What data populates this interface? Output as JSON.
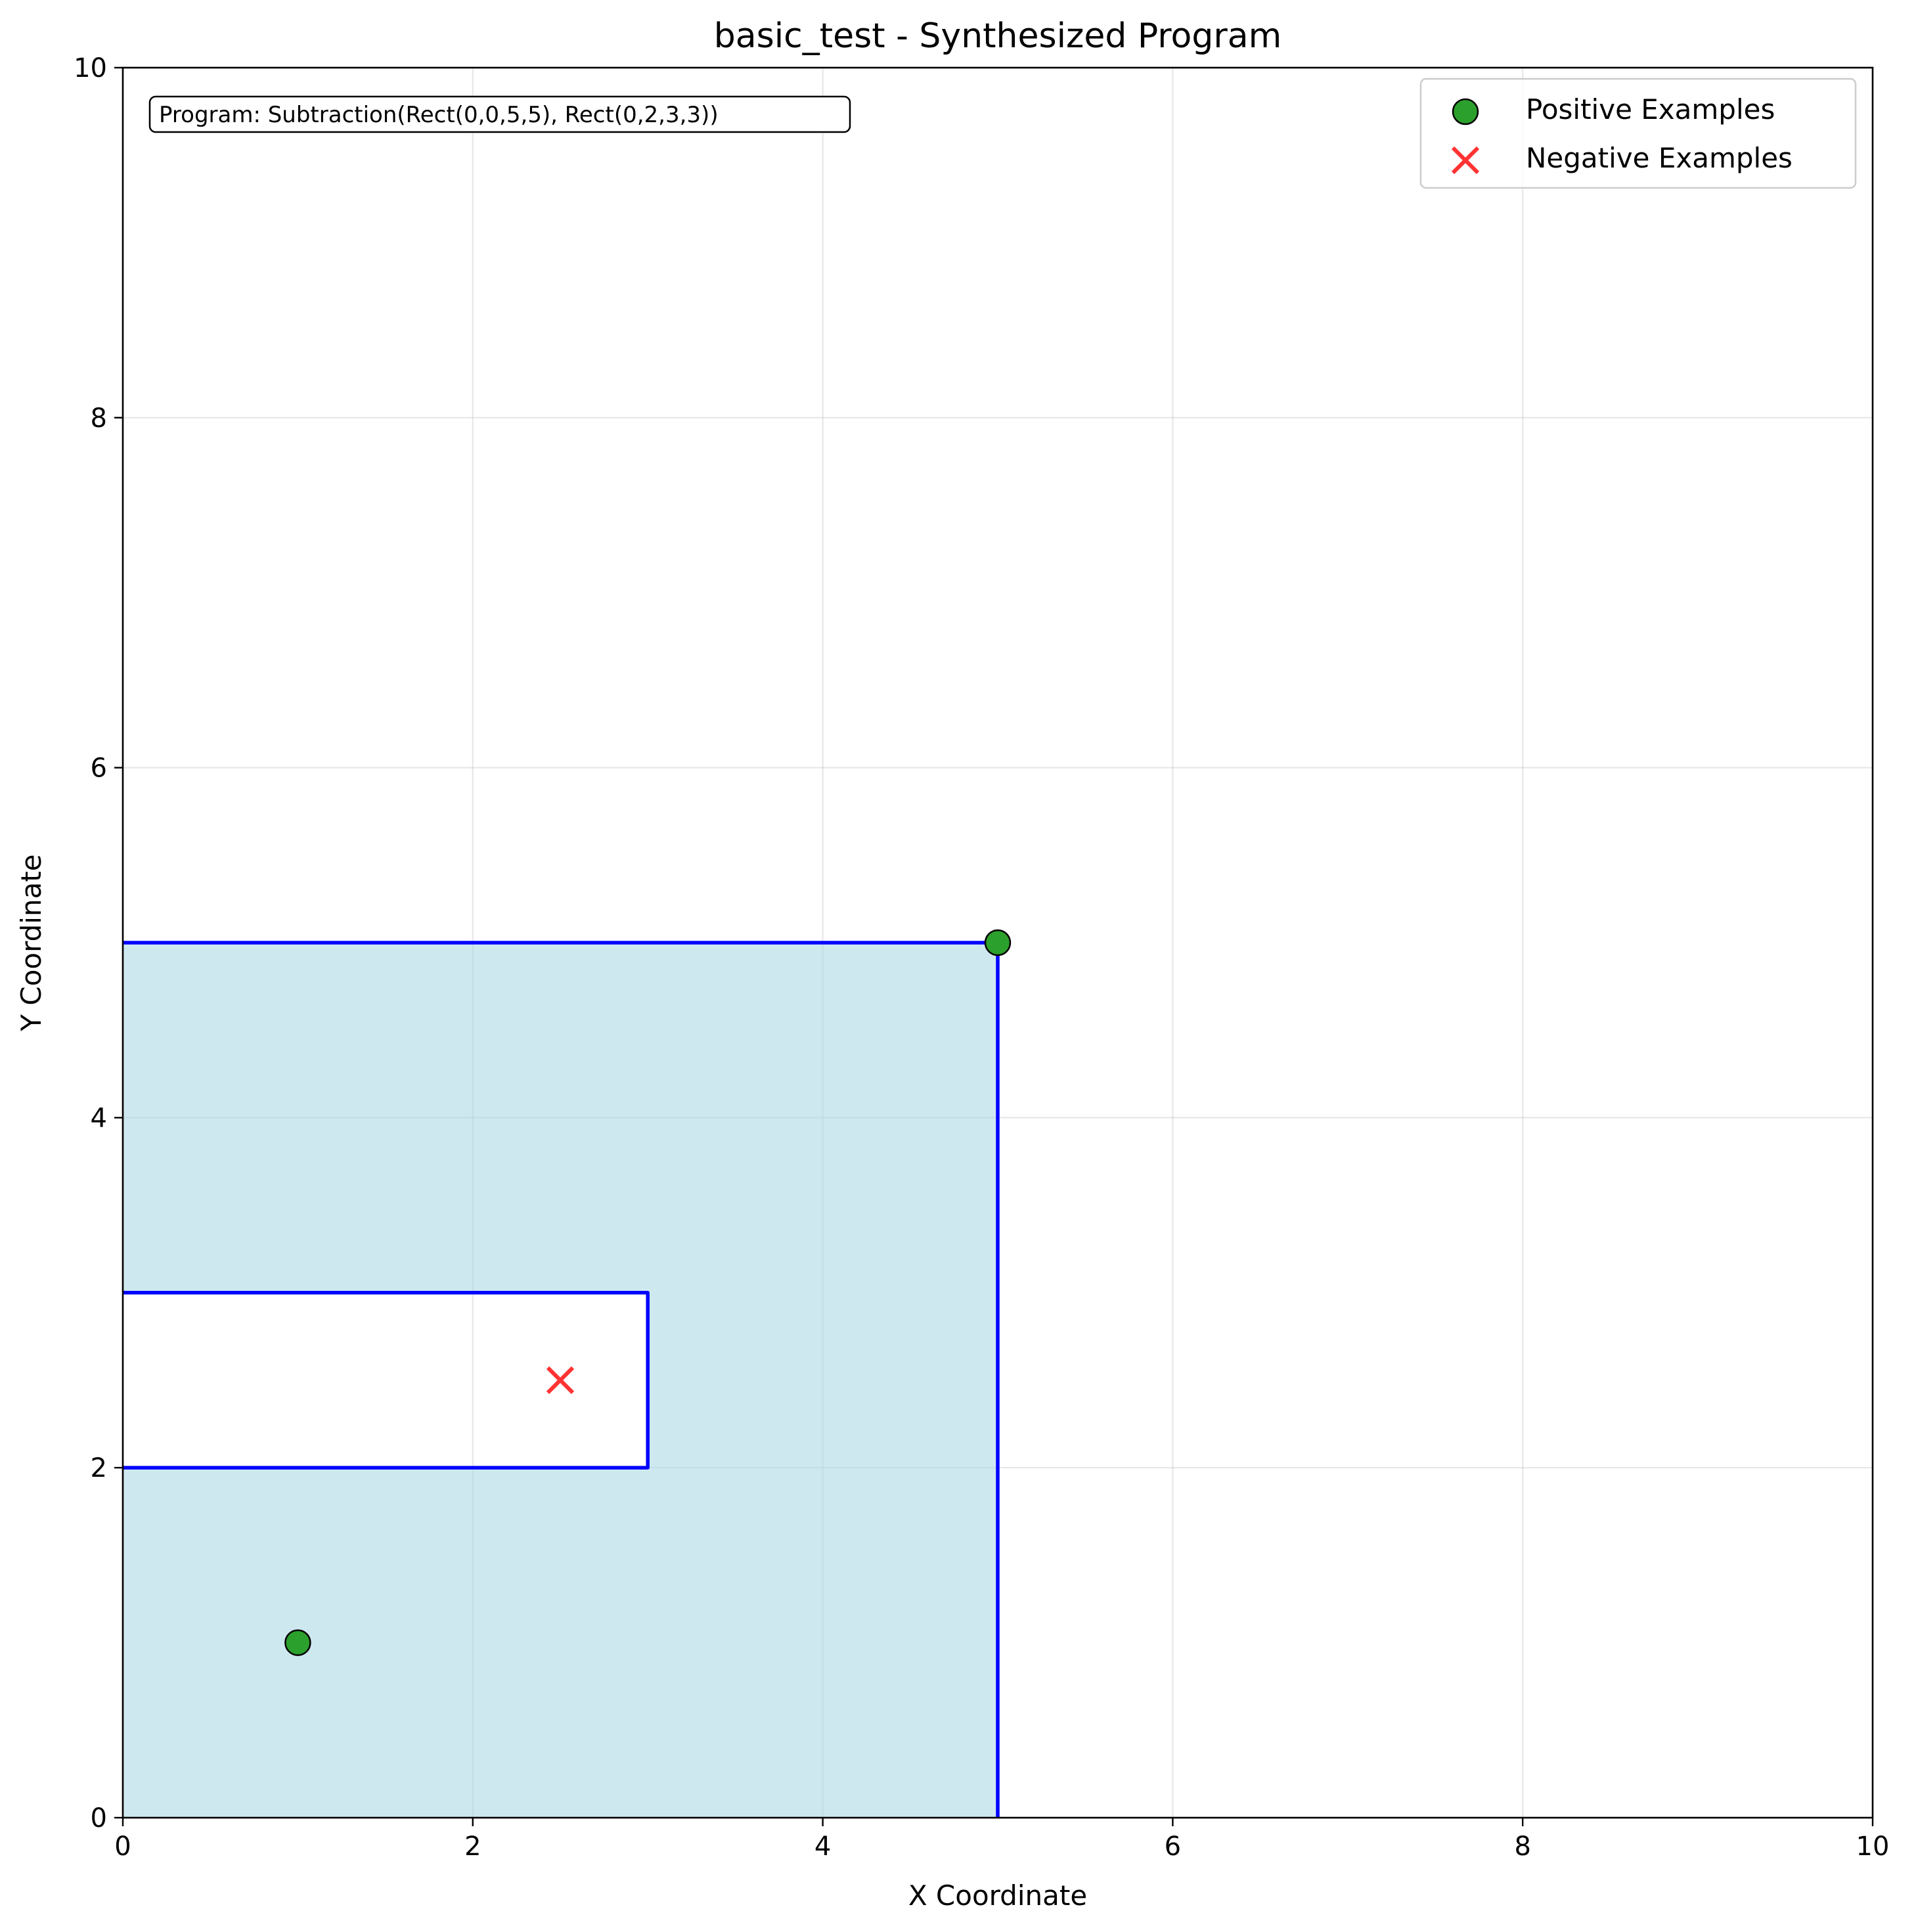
{
  "chart_data": {
    "type": "scatter",
    "title": "basic_test - Synthesized Program",
    "xlabel": "X Coordinate",
    "ylabel": "Y Coordinate",
    "xlim": [
      0,
      10
    ],
    "ylim": [
      0,
      10
    ],
    "xticks": [
      0,
      2,
      4,
      6,
      8,
      10
    ],
    "yticks": [
      0,
      2,
      4,
      6,
      8,
      10
    ],
    "grid": true,
    "legend_position": "top-right",
    "annotation": "Program: Subtraction(Rect(0,0,5,5), Rect(0,2,3,3))",
    "region": {
      "outer_rect": {
        "x1": 0,
        "y1": 0,
        "x2": 5,
        "y2": 5
      },
      "subtracted_rect": {
        "x1": 0,
        "y1": 2,
        "x2": 3,
        "y2": 3
      },
      "fill_color": "#add8e6",
      "outline_color": "#0000ff"
    },
    "series": [
      {
        "name": "Positive Examples",
        "marker": "circle",
        "color": "#2ca02c",
        "points": [
          {
            "x": 1,
            "y": 1
          },
          {
            "x": 5,
            "y": 5
          }
        ]
      },
      {
        "name": "Negative Examples",
        "marker": "x",
        "color": "#ff3333",
        "points": [
          {
            "x": 2.5,
            "y": 2.5
          }
        ]
      }
    ]
  }
}
